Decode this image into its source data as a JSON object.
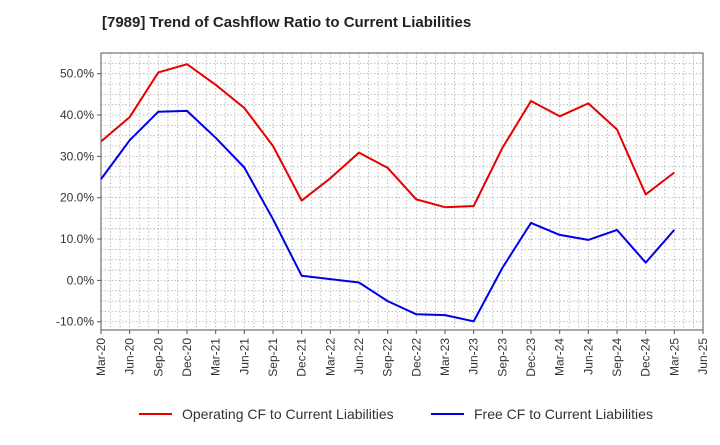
{
  "chart_data": {
    "type": "line",
    "title": "[7989]  Trend of Cashflow Ratio to Current Liabilities",
    "xlabel": "",
    "ylabel": "",
    "x_ticks": [
      "Mar-20",
      "Jun-20",
      "Sep-20",
      "Dec-20",
      "Mar-21",
      "Jun-21",
      "Sep-21",
      "Dec-21",
      "Mar-22",
      "Jun-22",
      "Sep-22",
      "Dec-22",
      "Mar-23",
      "Jun-23",
      "Sep-23",
      "Dec-23",
      "Mar-24",
      "Jun-24",
      "Sep-24",
      "Dec-24",
      "Mar-25",
      "Jun-25"
    ],
    "y_ticks": [
      "-10.0%",
      "0.0%",
      "10.0%",
      "20.0%",
      "30.0%",
      "40.0%",
      "50.0%"
    ],
    "ylim": [
      -12,
      55
    ],
    "grid": true,
    "legend_position": "bottom",
    "series": [
      {
        "name": "Operating CF to Current Liabilities",
        "color": "#e60000",
        "x": [
          "Mar-20",
          "Jun-20",
          "Sep-20",
          "Dec-20",
          "Mar-21",
          "Jun-21",
          "Sep-21",
          "Dec-21",
          "Mar-22",
          "Jun-22",
          "Sep-22",
          "Dec-22",
          "Mar-23",
          "Jun-23",
          "Sep-23",
          "Dec-23",
          "Mar-24",
          "Jun-24",
          "Sep-24",
          "Dec-24",
          "Mar-25"
        ],
        "values": [
          33.6,
          39.5,
          50.3,
          52.3,
          47.3,
          41.7,
          32.5,
          19.3,
          24.7,
          30.9,
          27.2,
          19.6,
          17.7,
          18.0,
          32.0,
          43.4,
          39.7,
          42.8,
          36.5,
          20.8,
          26.1
        ]
      },
      {
        "name": "Free CF to Current Liabilities",
        "color": "#0000e6",
        "x": [
          "Mar-20",
          "Jun-20",
          "Sep-20",
          "Dec-20",
          "Mar-21",
          "Jun-21",
          "Sep-21",
          "Dec-21",
          "Mar-22",
          "Jun-22",
          "Sep-22",
          "Dec-22",
          "Mar-23",
          "Jun-23",
          "Sep-23",
          "Dec-23",
          "Mar-24",
          "Jun-24",
          "Sep-24",
          "Dec-24",
          "Mar-25"
        ],
        "values": [
          24.5,
          33.9,
          40.8,
          41.0,
          34.5,
          27.3,
          14.8,
          1.1,
          0.3,
          -0.5,
          -5.0,
          -8.2,
          -8.4,
          -9.9,
          3.0,
          13.9,
          11.0,
          9.8,
          12.2,
          4.3,
          12.2
        ]
      }
    ]
  }
}
